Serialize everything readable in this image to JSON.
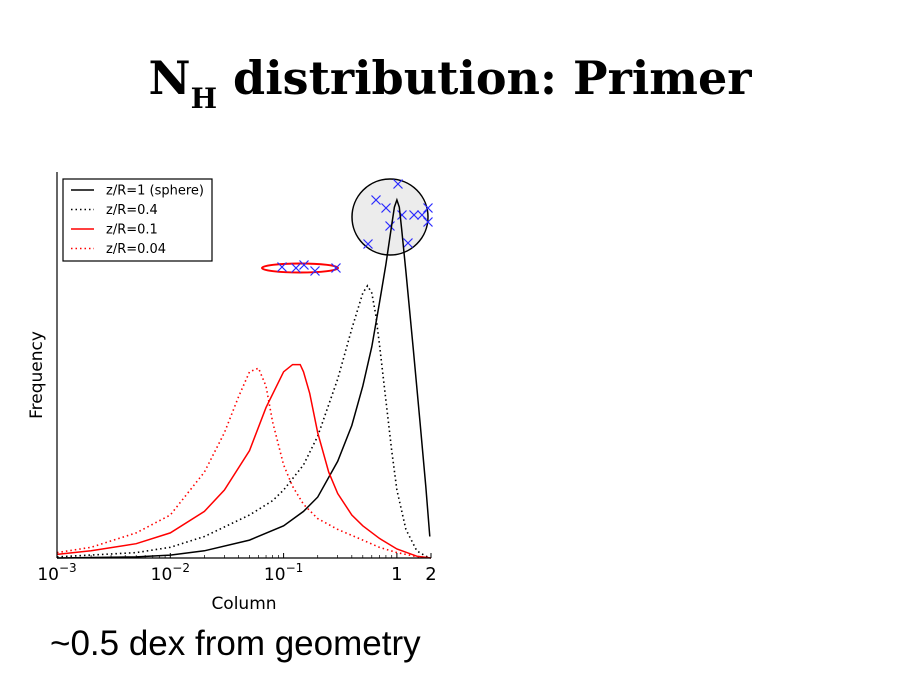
{
  "slide": {
    "title_main": "N",
    "title_subscript": "H",
    "title_rest": " distribution: Primer",
    "caption": "~0.5 dex from geometry"
  },
  "chart_data": {
    "type": "line",
    "xscale": "log",
    "xlabel": "Column",
    "ylabel": "Frequency",
    "xlim": [
      0.001,
      2
    ],
    "ylim": [
      0,
      1.05
    ],
    "x_ticks": [
      {
        "value": 0.001,
        "base": "10",
        "exp": "−3"
      },
      {
        "value": 0.01,
        "base": "10",
        "exp": "−2"
      },
      {
        "value": 0.1,
        "base": "10",
        "exp": "−1"
      },
      {
        "value": 1,
        "base": "1",
        "exp": ""
      },
      {
        "value": 2,
        "base": "2",
        "exp": ""
      }
    ],
    "legend_position": "top-left",
    "series": [
      {
        "name": "z/R=1 (sphere)",
        "color": "#000000",
        "dash": "solid",
        "x": [
          0.001,
          0.005,
          0.01,
          0.02,
          0.05,
          0.1,
          0.15,
          0.2,
          0.3,
          0.4,
          0.5,
          0.6,
          0.7,
          0.8,
          0.9,
          0.95,
          1.0,
          1.05,
          1.1,
          1.2,
          1.4,
          1.6,
          1.8,
          1.95
        ],
        "y": [
          0.0,
          0.003,
          0.008,
          0.02,
          0.05,
          0.09,
          0.13,
          0.17,
          0.27,
          0.37,
          0.48,
          0.59,
          0.71,
          0.82,
          0.93,
          0.98,
          1.0,
          0.98,
          0.92,
          0.8,
          0.58,
          0.38,
          0.2,
          0.06
        ]
      },
      {
        "name": "z/R=0.4",
        "color": "#000000",
        "dash": "dotted",
        "x": [
          0.001,
          0.005,
          0.01,
          0.02,
          0.05,
          0.08,
          0.1,
          0.15,
          0.2,
          0.3,
          0.4,
          0.5,
          0.55,
          0.6,
          0.65,
          0.7,
          0.8,
          0.9,
          1.0,
          1.2,
          1.5,
          1.8,
          2.0
        ],
        "y": [
          0.003,
          0.015,
          0.03,
          0.06,
          0.12,
          0.16,
          0.19,
          0.26,
          0.34,
          0.5,
          0.64,
          0.74,
          0.76,
          0.74,
          0.68,
          0.6,
          0.44,
          0.3,
          0.19,
          0.08,
          0.02,
          0.005,
          0.0
        ]
      },
      {
        "name": "z/R=0.1",
        "color": "#ff0000",
        "dash": "solid",
        "x": [
          0.001,
          0.002,
          0.005,
          0.01,
          0.02,
          0.03,
          0.05,
          0.07,
          0.1,
          0.12,
          0.14,
          0.15,
          0.17,
          0.2,
          0.25,
          0.3,
          0.4,
          0.5,
          0.7,
          1.0,
          1.5,
          2.0
        ],
        "y": [
          0.01,
          0.02,
          0.04,
          0.07,
          0.13,
          0.19,
          0.3,
          0.42,
          0.52,
          0.54,
          0.54,
          0.52,
          0.46,
          0.35,
          0.24,
          0.18,
          0.12,
          0.09,
          0.055,
          0.025,
          0.005,
          0.0
        ]
      },
      {
        "name": "z/R=0.04",
        "color": "#ff0000",
        "dash": "dotted",
        "x": [
          0.001,
          0.002,
          0.005,
          0.01,
          0.02,
          0.03,
          0.04,
          0.05,
          0.06,
          0.07,
          0.08,
          0.1,
          0.12,
          0.15,
          0.2,
          0.3,
          0.5,
          0.7,
          1.0,
          1.5,
          2.0
        ],
        "y": [
          0.015,
          0.03,
          0.07,
          0.12,
          0.24,
          0.35,
          0.45,
          0.52,
          0.53,
          0.48,
          0.38,
          0.26,
          0.2,
          0.15,
          0.11,
          0.08,
          0.05,
          0.03,
          0.015,
          0.004,
          0.0
        ]
      }
    ]
  }
}
